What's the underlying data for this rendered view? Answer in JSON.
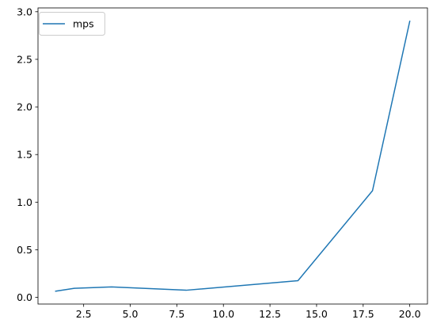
{
  "chart_data": {
    "type": "line",
    "title": "",
    "xlabel": "",
    "ylabel": "",
    "xlim": [
      0.05,
      20.95
    ],
    "ylim": [
      -0.07,
      3.04
    ],
    "xticks": [
      2.5,
      5.0,
      7.5,
      10.0,
      12.5,
      15.0,
      17.5,
      20.0
    ],
    "xtick_labels": [
      "2.5",
      "5.0",
      "7.5",
      "10.0",
      "12.5",
      "15.0",
      "17.5",
      "20.0"
    ],
    "yticks": [
      0.0,
      0.5,
      1.0,
      1.5,
      2.0,
      2.5,
      3.0
    ],
    "ytick_labels": [
      "0.0",
      "0.5",
      "1.0",
      "1.5",
      "2.0",
      "2.5",
      "3.0"
    ],
    "grid": false,
    "legend_position": "top-left",
    "series": [
      {
        "name": "mps",
        "color": "#1f77b4",
        "x": [
          1,
          2,
          4,
          8,
          14,
          18,
          20
        ],
        "y": [
          0.065,
          0.095,
          0.11,
          0.075,
          0.175,
          1.12,
          2.9
        ]
      }
    ]
  }
}
